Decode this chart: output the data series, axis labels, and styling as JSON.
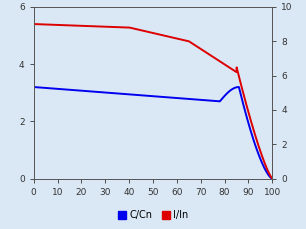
{
  "title": "",
  "xlabel": "",
  "ylabel_left": "",
  "ylabel_right": "",
  "xlim": [
    0,
    100
  ],
  "ylim_left": [
    0,
    6
  ],
  "ylim_right": [
    0,
    10
  ],
  "xticks": [
    0,
    10,
    20,
    30,
    40,
    50,
    60,
    70,
    80,
    90,
    100
  ],
  "yticks_left": [
    0,
    2,
    4,
    6
  ],
  "yticks_right": [
    0,
    2,
    4,
    6,
    8,
    10
  ],
  "background_color": "#dae8f5",
  "plot_bg_color": "#dae8f5",
  "blue_color": "#0000ee",
  "red_color": "#dd0000",
  "legend_labels": [
    "C/Cn",
    "I/In"
  ],
  "line_width": 1.4
}
